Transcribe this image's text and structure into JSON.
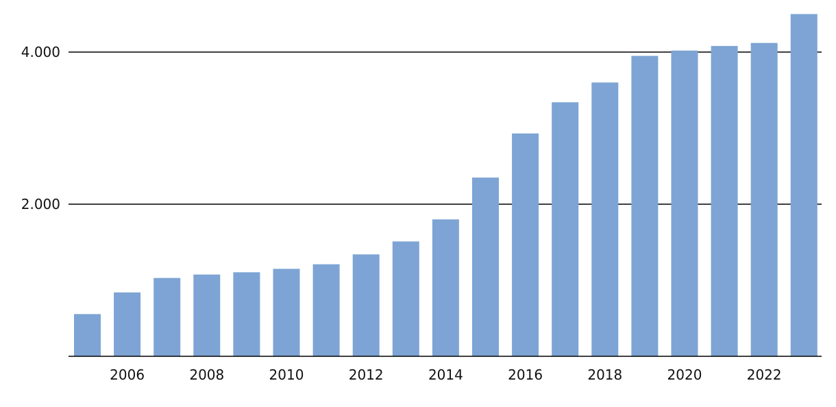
{
  "chart_data": {
    "type": "bar",
    "title": "",
    "xlabel": "",
    "ylabel": "",
    "categories": [
      "2005",
      "2006",
      "2007",
      "2008",
      "2009",
      "2010",
      "2011",
      "2012",
      "2013",
      "2014",
      "2015",
      "2016",
      "2017",
      "2018",
      "2019",
      "2020",
      "2021",
      "2022",
      "2023"
    ],
    "x_tick_labels": [
      "2006",
      "2008",
      "2010",
      "2012",
      "2014",
      "2016",
      "2018",
      "2020",
      "2022"
    ],
    "y_ticks": [
      2000,
      4000
    ],
    "y_tick_labels": [
      "2.000",
      "4.000"
    ],
    "values": [
      555,
      840,
      1030,
      1075,
      1105,
      1150,
      1210,
      1340,
      1510,
      1800,
      2350,
      2930,
      3340,
      3600,
      3950,
      4020,
      4080,
      4120,
      4500
    ],
    "ylim": [
      0,
      4550
    ],
    "grid": true,
    "legend": "none",
    "bar_color": "#7da4d4"
  }
}
